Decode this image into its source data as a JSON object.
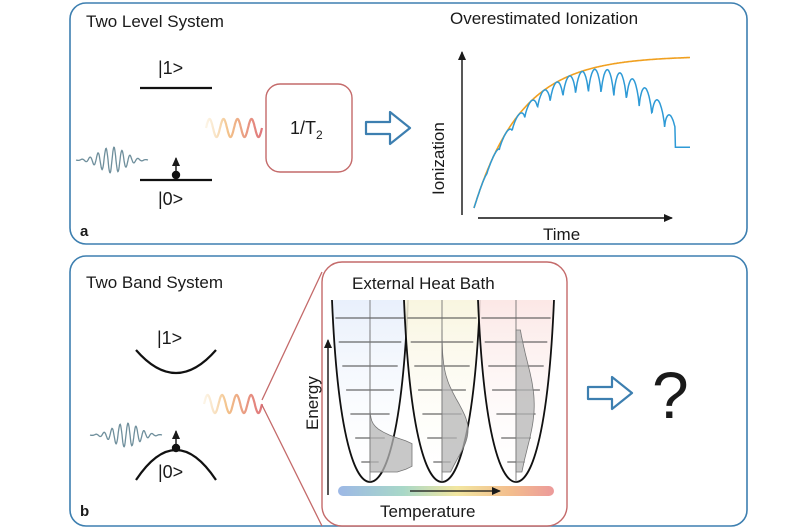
{
  "panel_a": {
    "title": "Two Level System",
    "state_upper": "|1>",
    "state_lower": "|0>",
    "box_label": "1/T",
    "box_sub": "2",
    "plot_title": "Overestimated Ionization",
    "ylabel": "Ionization",
    "xlabel": "Time",
    "tag": "a"
  },
  "panel_b": {
    "title": "Two Band System",
    "state_upper": "|1>",
    "state_lower": "|0>",
    "bath_title": "External Heat Bath",
    "ylabel": "Energy",
    "xlabel": "Temperature",
    "result": "?",
    "tag": "b"
  },
  "colors": {
    "frame": "#3d7fb0",
    "bath_frame": "#c46a6a",
    "curve_orange": "#f0a020",
    "curve_blue": "#2e9ad6",
    "arrow_fill": "#ffffff",
    "arrow_stroke": "#3d7fb0",
    "pulse": "#6f8f9c",
    "wave_light": "#f3d2a2",
    "wave_dark": "#e0767b"
  },
  "icons": [
    "wave-packet-icon",
    "photon-wave-icon",
    "right-arrow-icon",
    "energy-level-icon"
  ]
}
